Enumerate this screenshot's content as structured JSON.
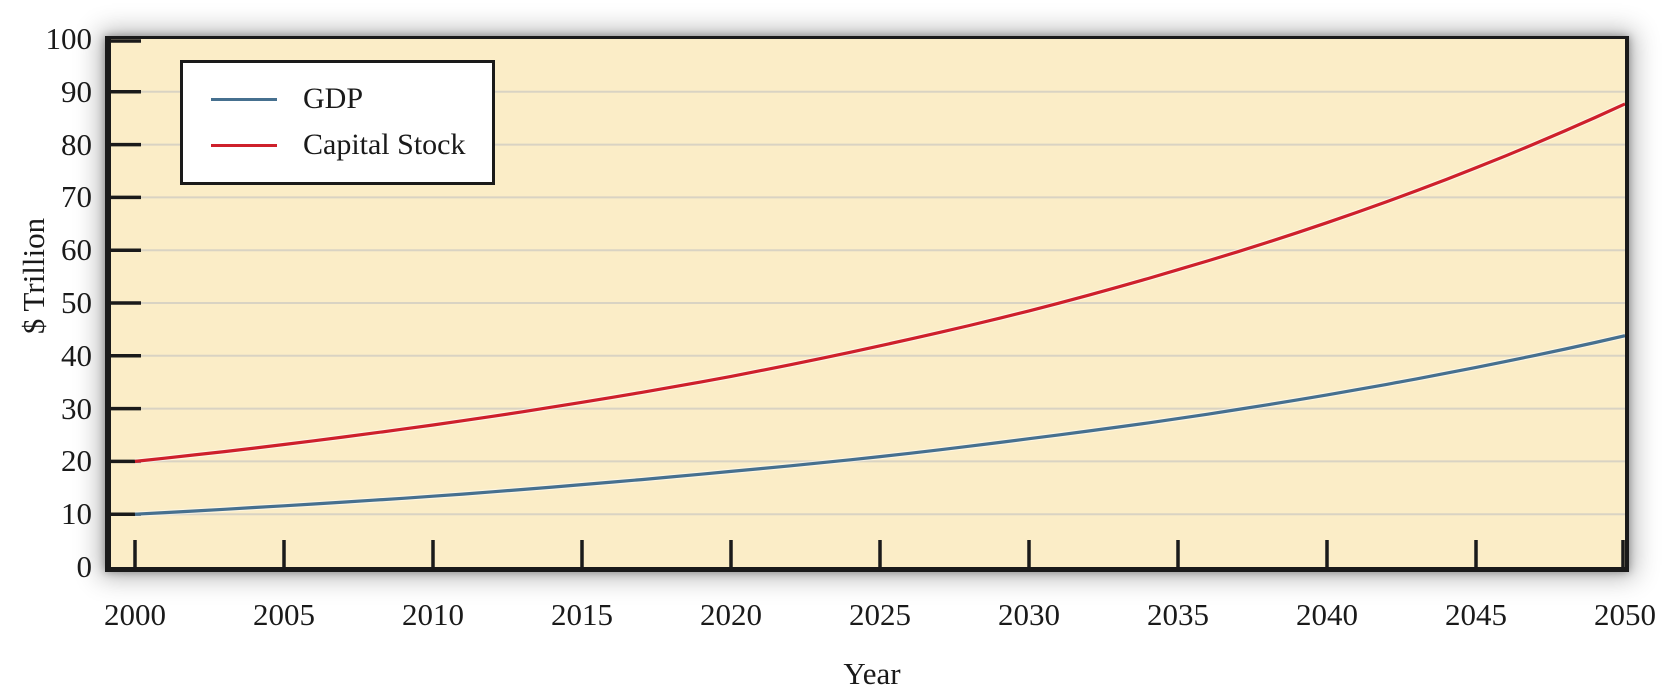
{
  "chart_data": {
    "type": "line",
    "title": "",
    "xlabel": "Year",
    "ylabel": "$ Trillion",
    "xlim": [
      2000,
      2050
    ],
    "ylim": [
      0,
      100
    ],
    "x_ticks": [
      2000,
      2005,
      2010,
      2015,
      2020,
      2025,
      2030,
      2035,
      2040,
      2045,
      2050
    ],
    "y_ticks": [
      0,
      10,
      20,
      30,
      40,
      50,
      60,
      70,
      80,
      90,
      100
    ],
    "grid": "horizontal gridlines at every y tick",
    "legend_position": "top-left",
    "x": [
      2000,
      2005,
      2010,
      2015,
      2020,
      2025,
      2030,
      2035,
      2040,
      2045,
      2050
    ],
    "series": [
      {
        "name": "GDP",
        "color": "#46708F",
        "values": [
          10.0,
          11.6,
          13.4,
          15.6,
          18.1,
          20.9,
          24.3,
          28.1,
          32.6,
          37.8,
          43.8
        ]
      },
      {
        "name": "Capital Stock",
        "color": "#CE202B",
        "values": [
          20.0,
          23.2,
          26.9,
          31.2,
          36.1,
          41.9,
          48.5,
          56.3,
          65.2,
          75.6,
          87.7
        ]
      }
    ]
  },
  "colors": {
    "outer_background": "#FFFFFF",
    "plot_background": "#FBEDC7",
    "gridline": "#D9D3C3",
    "axis": "#1A1A1A",
    "text": "#1A1A1A",
    "legend_background": "#FFFFFF",
    "line_halo": "#FFFFFF"
  }
}
